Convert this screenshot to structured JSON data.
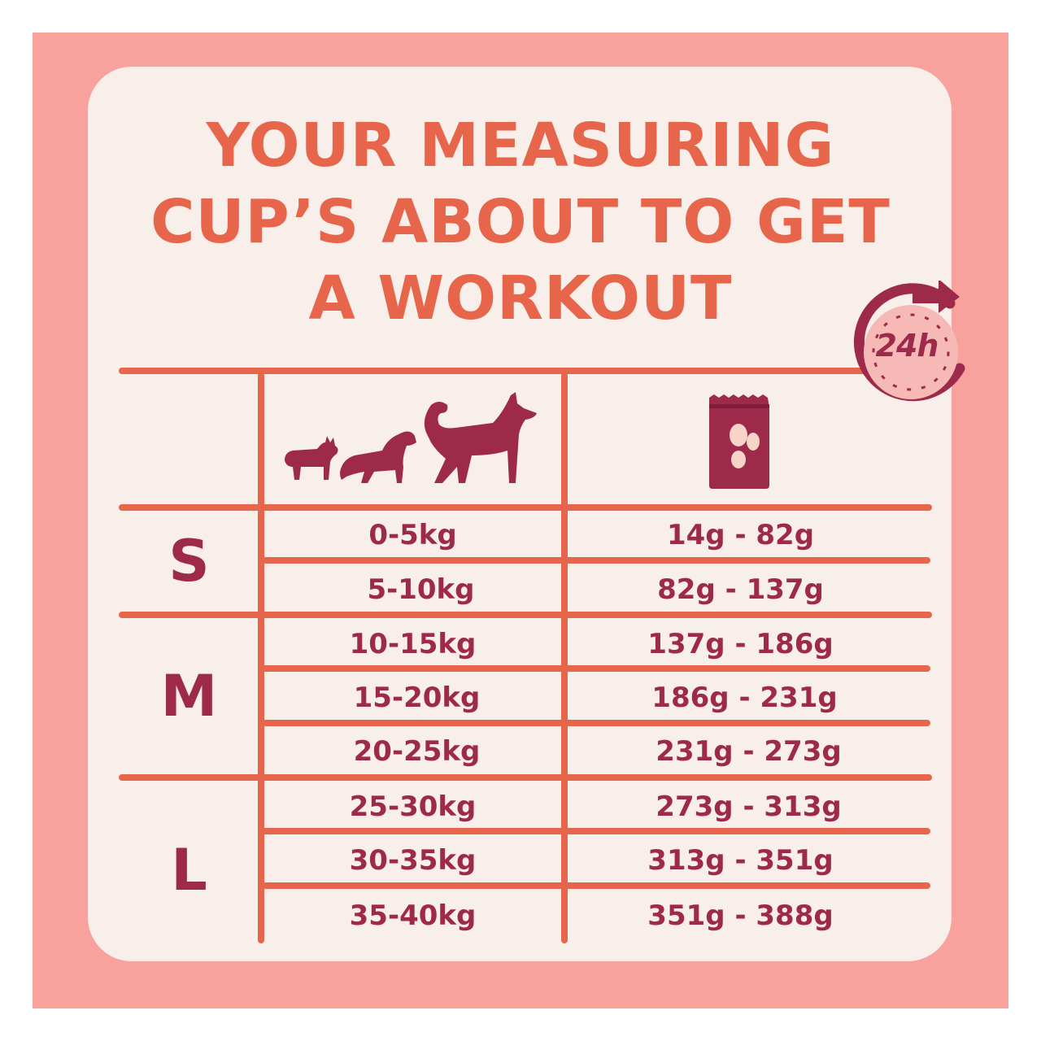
{
  "headline": [
    "YOUR MEASURING",
    "CUP’S ABOUT TO GET",
    "A WORKOUT"
  ],
  "badge": {
    "label": "24h",
    "icon": "24-hour-clock-icon"
  },
  "header_icons": {
    "dogs": "three-dog-sizes-icon",
    "food": "food-bag-icon"
  },
  "colors": {
    "frame": "#f9a19c",
    "card": "#f8efea",
    "accent": "#e7654a",
    "text": "#9d2a4b"
  },
  "groups": [
    {
      "size": "S",
      "rows": [
        {
          "weight": "0-5kg",
          "portion": "14g - 82g"
        },
        {
          "weight": "5-10kg",
          "portion": "82g - 137g"
        }
      ]
    },
    {
      "size": "M",
      "rows": [
        {
          "weight": "10-15kg",
          "portion": "137g - 186g"
        },
        {
          "weight": "15-20kg",
          "portion": "186g - 231g"
        },
        {
          "weight": "20-25kg",
          "portion": "231g - 273g"
        }
      ]
    },
    {
      "size": "L",
      "rows": [
        {
          "weight": "25-30kg",
          "portion": "273g - 313g"
        },
        {
          "weight": "30-35kg",
          "portion": "313g - 351g"
        },
        {
          "weight": "35-40kg",
          "portion": "351g - 388g"
        }
      ]
    }
  ]
}
